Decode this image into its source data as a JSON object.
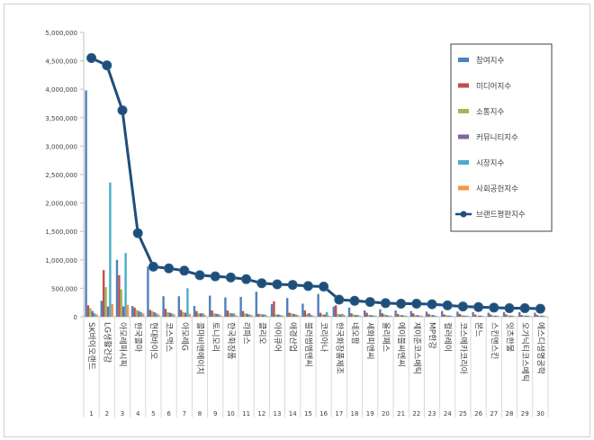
{
  "chart_data": {
    "type": "bar",
    "title": "",
    "xlabel": "",
    "ylabel": "",
    "ylim": [
      0,
      5000000
    ],
    "y_ticks": [
      "0",
      "500,000",
      "1,000,000",
      "1,500,000",
      "2,000,000",
      "2,500,000",
      "3,000,000",
      "3,500,000",
      "4,000,000",
      "4,500,000",
      "5,000,000"
    ],
    "grid": false,
    "legend_position": "right",
    "categories": [
      "SK바이오랜드",
      "LG생활건강",
      "아모레퍼시픽",
      "한국콜마",
      "현대바이오",
      "코스맥스",
      "아모레G",
      "콜마비앤에이치",
      "토니모리",
      "한국화장품",
      "라파스",
      "클리오",
      "아이큐어",
      "애경산업",
      "블러썸엠앤씨",
      "코리아나",
      "한국화장품제조",
      "네오팜",
      "세화피앤씨",
      "올리패스",
      "에이블씨엔씨",
      "제이준코스메틱",
      "MP한강",
      "컬러레이",
      "코스메카코리아",
      "본느",
      "스킨앤스킨",
      "잇츠한불",
      "오가닉티코스메틱",
      "에스디생명공학"
    ],
    "ranks": [
      "1",
      "2",
      "3",
      "4",
      "5",
      "6",
      "7",
      "8",
      "9",
      "10",
      "11",
      "12",
      "13",
      "14",
      "15",
      "16",
      "17",
      "18",
      "19",
      "20",
      "21",
      "22",
      "23",
      "24",
      "25",
      "26",
      "27",
      "28",
      "29",
      "30"
    ],
    "series": [
      {
        "name": "참여지수",
        "color": "#4f81bd",
        "kind": "bar",
        "values": [
          3980000,
          280000,
          1000000,
          190000,
          880000,
          360000,
          360000,
          190000,
          370000,
          340000,
          350000,
          440000,
          220000,
          330000,
          230000,
          400000,
          180000,
          160000,
          110000,
          130000,
          110000,
          100000,
          90000,
          100000,
          90000,
          80000,
          70000,
          80000,
          80000,
          70000
        ]
      },
      {
        "name": "미디어지수",
        "color": "#c0504d",
        "kind": "bar",
        "values": [
          200000,
          820000,
          730000,
          160000,
          120000,
          140000,
          120000,
          100000,
          110000,
          110000,
          100000,
          50000,
          270000,
          70000,
          110000,
          70000,
          200000,
          60000,
          70000,
          60000,
          50000,
          60000,
          50000,
          40000,
          50000,
          40000,
          40000,
          40000,
          30000,
          30000
        ]
      },
      {
        "name": "소통지수",
        "color": "#9bbb59",
        "kind": "bar",
        "values": [
          150000,
          520000,
          480000,
          120000,
          100000,
          80000,
          80000,
          60000,
          60000,
          70000,
          60000,
          50000,
          40000,
          60000,
          50000,
          40000,
          50000,
          40000,
          30000,
          40000,
          30000,
          30000,
          30000,
          30000,
          30000,
          20000,
          20000,
          20000,
          20000,
          20000
        ]
      },
      {
        "name": "커뮤니티지수",
        "color": "#8064a2",
        "kind": "bar",
        "values": [
          100000,
          180000,
          180000,
          100000,
          80000,
          70000,
          70000,
          60000,
          50000,
          60000,
          50000,
          40000,
          40000,
          50000,
          60000,
          40000,
          40000,
          30000,
          30000,
          30000,
          30000,
          30000,
          30000,
          20000,
          20000,
          20000,
          20000,
          20000,
          20000,
          20000
        ]
      },
      {
        "name": "시장지수",
        "color": "#4bacc6",
        "kind": "bar",
        "values": [
          60000,
          2360000,
          1120000,
          80000,
          60000,
          60000,
          500000,
          60000,
          50000,
          60000,
          40000,
          40000,
          30000,
          40000,
          30000,
          80000,
          50000,
          30000,
          20000,
          20000,
          20000,
          20000,
          20000,
          20000,
          20000,
          20000,
          20000,
          20000,
          20000,
          20000
        ]
      },
      {
        "name": "사회공헌지수",
        "color": "#f79646",
        "kind": "bar",
        "values": [
          40000,
          220000,
          210000,
          60000,
          40000,
          40000,
          50000,
          30000,
          30000,
          30000,
          30000,
          20000,
          20000,
          30000,
          20000,
          20000,
          30000,
          20000,
          20000,
          20000,
          20000,
          20000,
          10000,
          10000,
          20000,
          10000,
          10000,
          10000,
          10000,
          10000
        ]
      },
      {
        "name": "브랜드평판지수",
        "color": "#1f4e79",
        "kind": "line",
        "values": [
          4550000,
          4420000,
          3630000,
          1470000,
          880000,
          850000,
          810000,
          730000,
          710000,
          690000,
          660000,
          590000,
          570000,
          560000,
          540000,
          530000,
          300000,
          280000,
          260000,
          240000,
          230000,
          230000,
          220000,
          200000,
          180000,
          170000,
          160000,
          150000,
          150000,
          140000
        ]
      }
    ]
  }
}
